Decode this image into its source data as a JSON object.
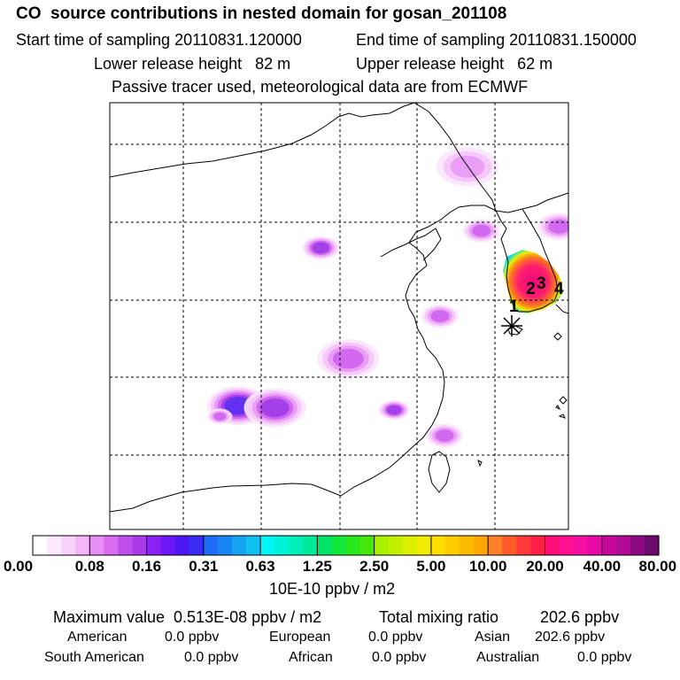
{
  "header": {
    "title": "CO  source contributions in nested domain for gosan_201108",
    "start_label": "Start time of sampling 20110831.120000",
    "end_label": "End time of sampling 20110831.150000",
    "lower_label": "Lower release height   82 m",
    "upper_label": "Upper release height   62 m",
    "tracer_note": "Passive tracer used, meteorological data are from ECMWF"
  },
  "chart_data": {
    "type": "heatmap",
    "title": "CO  source contributions in nested domain for gosan_201108",
    "map_region": "East Asia nested domain",
    "receptor_marker": "asterisk",
    "grid": true,
    "colorbar": {
      "unit": "10E-10 ppbv / m2",
      "tick_labels": [
        "0.00",
        "0.08",
        "0.16",
        "0.31",
        "0.63",
        "1.25",
        "2.50",
        "5.00",
        "10.00",
        "20.00",
        "40.00",
        "80.00"
      ],
      "colors": [
        "#ffffff",
        "#fce8fd",
        "#f9d2fb",
        "#f4b6f8",
        "#e88df4",
        "#d76cf0",
        "#c14ded",
        "#a93ce8",
        "#8a22f3",
        "#6a18f6",
        "#4d16f5",
        "#3a2cf2",
        "#1f6cf5",
        "#1a86f5",
        "#16a3f2",
        "#10c0f2",
        "#00f5f5",
        "#00f2d6",
        "#00eeb8",
        "#00e89a",
        "#00e46a",
        "#12e83c",
        "#2ae81e",
        "#45e80a",
        "#a7f000",
        "#c3f000",
        "#dcf000",
        "#f2ea00",
        "#ffde00",
        "#ffcc00",
        "#ffba00",
        "#ffa500",
        "#ff7f2a",
        "#ff5a2a",
        "#ff3a3a",
        "#ff1e46",
        "#ff0f78",
        "#ff1090",
        "#f510a0",
        "#e80aa4",
        "#c8089c",
        "#b00a94",
        "#8e0a82",
        "#6c0a6a"
      ]
    },
    "plumes": [
      {
        "x": 0.28,
        "y": 0.71,
        "r": 0.05,
        "level": 5
      },
      {
        "x": 0.36,
        "y": 0.715,
        "r": 0.05,
        "level": 4
      },
      {
        "x": 0.24,
        "y": 0.735,
        "r": 0.02,
        "level": 3
      },
      {
        "x": 0.46,
        "y": 0.34,
        "r": 0.03,
        "level": 4
      },
      {
        "x": 0.52,
        "y": 0.6,
        "r": 0.05,
        "level": 3
      },
      {
        "x": 0.62,
        "y": 0.72,
        "r": 0.025,
        "level": 4
      },
      {
        "x": 0.72,
        "y": 0.5,
        "r": 0.03,
        "level": 3
      },
      {
        "x": 0.73,
        "y": 0.78,
        "r": 0.03,
        "level": 3
      },
      {
        "x": 0.78,
        "y": 0.15,
        "r": 0.05,
        "level": 2
      },
      {
        "x": 0.81,
        "y": 0.3,
        "r": 0.03,
        "level": 3
      },
      {
        "x": 0.98,
        "y": 0.29,
        "r": 0.035,
        "level": 3
      }
    ],
    "source_labels": [
      "1",
      "2",
      "3",
      "4"
    ]
  },
  "stats": {
    "max_label": "Maximum value  0.513E-08 ppbv / m2",
    "total_label": "Total mixing ratio",
    "total_value": "202.6 ppbv"
  },
  "sources": [
    {
      "name": "American",
      "value": "0.0 ppbv"
    },
    {
      "name": "European",
      "value": "0.0 ppbv"
    },
    {
      "name": "Asian",
      "value": "202.6 ppbv"
    },
    {
      "name": "South American",
      "value": "0.0 ppbv"
    },
    {
      "name": "African",
      "value": "0.0 ppbv"
    },
    {
      "name": "Australian",
      "value": "0.0 ppbv"
    }
  ]
}
